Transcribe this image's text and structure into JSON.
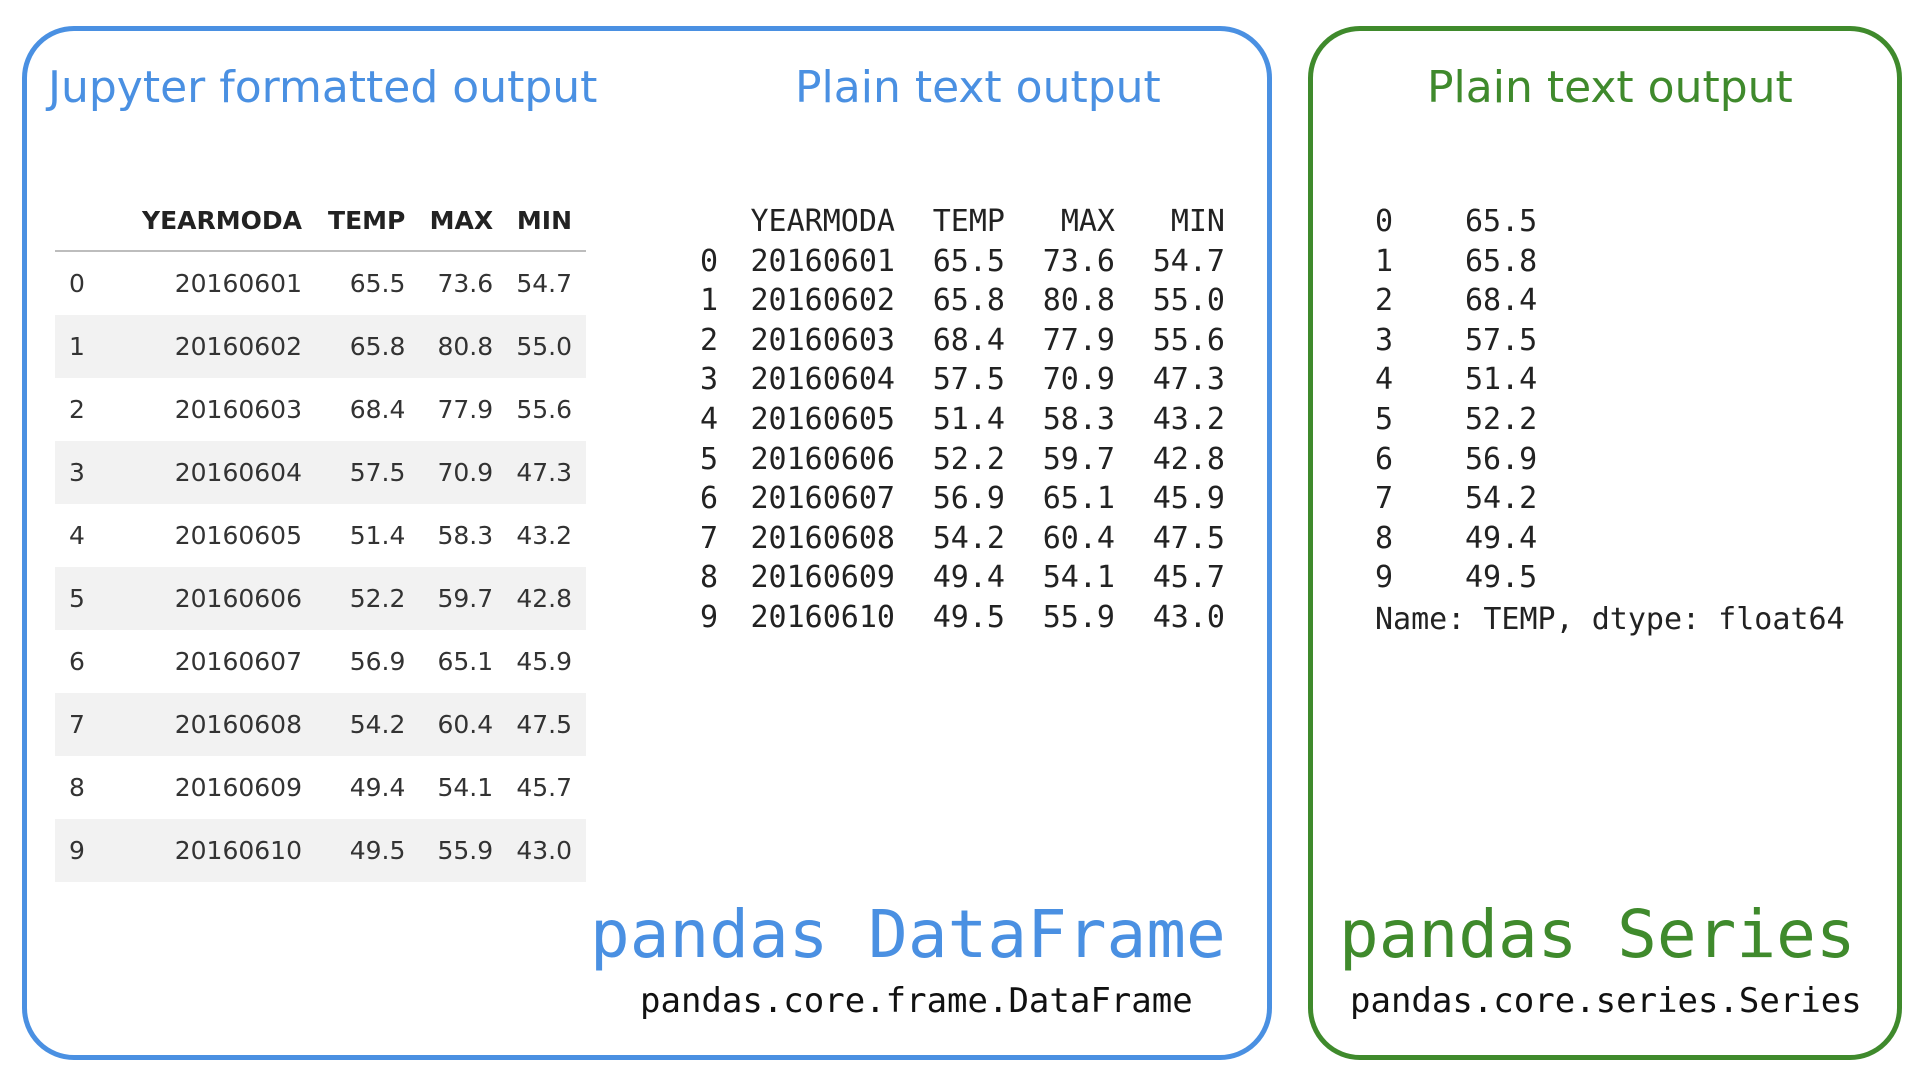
{
  "dataframe_panel": {
    "jupyter_heading": "Jupyter formatted output",
    "plain_heading": "Plain text output",
    "title": "pandas DataFrame",
    "type_path": "pandas.core.frame.DataFrame",
    "border_color": "#4a90e2"
  },
  "series_panel": {
    "plain_heading": "Plain text output",
    "title": "pandas Series",
    "type_path": "pandas.core.series.Series",
    "footer": "Name: TEMP, dtype: float64",
    "border_color": "#3f8a2c"
  },
  "table": {
    "columns": [
      "",
      "YEARMODA",
      "TEMP",
      "MAX",
      "MIN"
    ],
    "rows": [
      [
        "0",
        "20160601",
        "65.5",
        "73.6",
        "54.7"
      ],
      [
        "1",
        "20160602",
        "65.8",
        "80.8",
        "55.0"
      ],
      [
        "2",
        "20160603",
        "68.4",
        "77.9",
        "55.6"
      ],
      [
        "3",
        "20160604",
        "57.5",
        "70.9",
        "47.3"
      ],
      [
        "4",
        "20160605",
        "51.4",
        "58.3",
        "43.2"
      ],
      [
        "5",
        "20160606",
        "52.2",
        "59.7",
        "42.8"
      ],
      [
        "6",
        "20160607",
        "56.9",
        "65.1",
        "45.9"
      ],
      [
        "7",
        "20160608",
        "54.2",
        "60.4",
        "47.5"
      ],
      [
        "8",
        "20160609",
        "49.4",
        "54.1",
        "45.7"
      ],
      [
        "9",
        "20160610",
        "49.5",
        "55.9",
        "43.0"
      ]
    ]
  },
  "series": {
    "rows": [
      [
        "0",
        "65.5"
      ],
      [
        "1",
        "65.8"
      ],
      [
        "2",
        "68.4"
      ],
      [
        "3",
        "57.5"
      ],
      [
        "4",
        "51.4"
      ],
      [
        "5",
        "52.2"
      ],
      [
        "6",
        "56.9"
      ],
      [
        "7",
        "54.2"
      ],
      [
        "8",
        "49.4"
      ],
      [
        "9",
        "49.5"
      ]
    ]
  }
}
